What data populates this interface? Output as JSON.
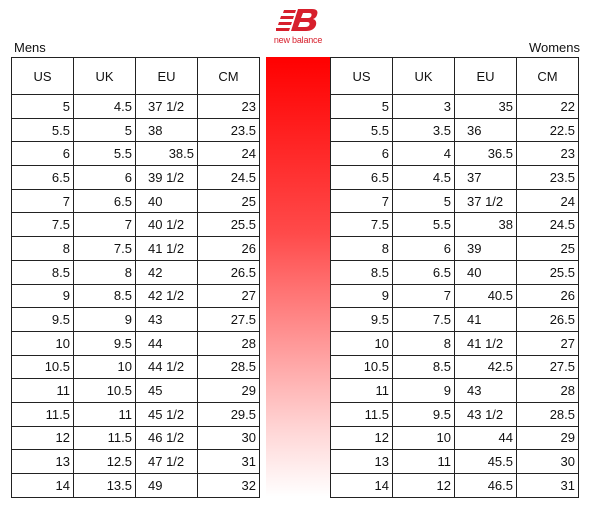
{
  "brand": {
    "name": "new balance",
    "color": "#d71f2c"
  },
  "mens": {
    "label": "Mens",
    "headers": [
      "US",
      "UK",
      "EU",
      "CM"
    ],
    "rows": [
      [
        "5",
        "4.5",
        "37 1/2",
        "23"
      ],
      [
        "5.5",
        "5",
        "38",
        "23.5"
      ],
      [
        "6",
        "5.5",
        "38.5",
        "24"
      ],
      [
        "6.5",
        "6",
        "39 1/2",
        "24.5"
      ],
      [
        "7",
        "6.5",
        "40",
        "25"
      ],
      [
        "7.5",
        "7",
        "40 1/2",
        "25.5"
      ],
      [
        "8",
        "7.5",
        "41 1/2",
        "26"
      ],
      [
        "8.5",
        "8",
        "42",
        "26.5"
      ],
      [
        "9",
        "8.5",
        "42 1/2",
        "27"
      ],
      [
        "9.5",
        "9",
        "43",
        "27.5"
      ],
      [
        "10",
        "9.5",
        "44",
        "28"
      ],
      [
        "10.5",
        "10",
        "44 1/2",
        "28.5"
      ],
      [
        "11",
        "10.5",
        "45",
        "29"
      ],
      [
        "11.5",
        "11",
        "45 1/2",
        "29.5"
      ],
      [
        "12",
        "11.5",
        "46 1/2",
        "30"
      ],
      [
        "13",
        "12.5",
        "47 1/2",
        "31"
      ],
      [
        "14",
        "13.5",
        "49",
        "32"
      ]
    ]
  },
  "womens": {
    "label": "Womens",
    "headers": [
      "US",
      "UK",
      "EU",
      "CM"
    ],
    "rows": [
      [
        "5",
        "3",
        "35",
        "22"
      ],
      [
        "5.5",
        "3.5",
        "36",
        "22.5"
      ],
      [
        "6",
        "4",
        "36.5",
        "23"
      ],
      [
        "6.5",
        "4.5",
        "37",
        "23.5"
      ],
      [
        "7",
        "5",
        "37 1/2",
        "24"
      ],
      [
        "7.5",
        "5.5",
        "38",
        "24.5"
      ],
      [
        "8",
        "6",
        "39",
        "25"
      ],
      [
        "8.5",
        "6.5",
        "40",
        "25.5"
      ],
      [
        "9",
        "7",
        "40.5",
        "26"
      ],
      [
        "9.5",
        "7.5",
        "41",
        "26.5"
      ],
      [
        "10",
        "8",
        "41 1/2",
        "27"
      ],
      [
        "10.5",
        "8.5",
        "42.5",
        "27.5"
      ],
      [
        "11",
        "9",
        "43",
        "28"
      ],
      [
        "11.5",
        "9.5",
        "43 1/2",
        "28.5"
      ],
      [
        "12",
        "10",
        "44",
        "29"
      ],
      [
        "13",
        "11",
        "45.5",
        "30"
      ],
      [
        "14",
        "12",
        "46.5",
        "31"
      ]
    ]
  }
}
